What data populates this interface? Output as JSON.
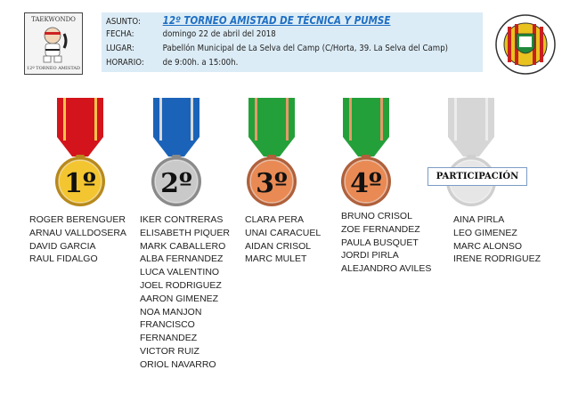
{
  "header": {
    "logo_left": {
      "top_text": "TAEKWONDO",
      "bottom_text": "12º TORNEO AMISTAD"
    },
    "logo_right": {
      "text": "LEE YOUNG BADALONA · TAEKWONDO"
    },
    "rows": [
      {
        "label": "ASUNTO:",
        "value": "12º TORNEO AMISTAD  DE TÉCNICA Y PUMSE"
      },
      {
        "label": "FECHA:",
        "value": "domingo 22 de abril del 2018"
      },
      {
        "label": "LUGAR:",
        "value": "Pabellón Municipal de La Selva del Camp (C/Horta, 39. La Selva del Camp)"
      },
      {
        "label": "HORARIO:",
        "value": "de 9:00h. a 15:00h."
      }
    ]
  },
  "medals": [
    {
      "label": "1º",
      "ribbon": "#d4141c",
      "stripe": "#f5c24a",
      "disc": "#f3c531",
      "rim": "#b8891a"
    },
    {
      "label": "2º",
      "ribbon": "#1b63b8",
      "stripe": "#d8d8d8",
      "disc": "#c9c9c9",
      "rim": "#8a8a8a"
    },
    {
      "label": "3º",
      "ribbon": "#24a03a",
      "stripe": "#e49a6a",
      "disc": "#e98a55",
      "rim": "#b0603a"
    },
    {
      "label": "4º",
      "ribbon": "#24a03a",
      "stripe": "#e49a6a",
      "disc": "#e98a55",
      "rim": "#b0603a"
    },
    {
      "label": "",
      "ribbon": "#d6d6d6",
      "stripe": "#ececec",
      "disc": "#e6e6e6",
      "rim": "#cfcfcf"
    }
  ],
  "participation_label": "PARTICIPACIÓN",
  "columns": [
    [
      "ROGER BERENGUER",
      "ARNAU VALLDOSERA",
      "DAVID GARCIA",
      "RAUL FIDALGO"
    ],
    [
      "IKER CONTRERAS",
      "ELISABETH PIQUER",
      "MARK CABALLERO",
      "ALBA FERNANDEZ",
      "LUCA VALENTINO",
      "JOEL RODRIGUEZ",
      "AARON GIMENEZ",
      "NOA MANJON",
      "FRANCISCO",
      "FERNANDEZ",
      "VICTOR RUIZ",
      "ORIOL NAVARRO"
    ],
    [
      "CLARA PERA",
      "UNAI CARACUEL",
      "AIDAN CRISOL",
      "MARC MULET"
    ],
    [
      "BRUNO CRISOL",
      "ZOE FERNANDEZ",
      "PAULA BUSQUET",
      "JORDI PIRLA",
      "ALEJANDRO AVILES"
    ],
    [
      "AINA PIRLA",
      "LEO GIMENEZ",
      "MARC ALONSO",
      "IRENE RODRIGUEZ"
    ]
  ]
}
